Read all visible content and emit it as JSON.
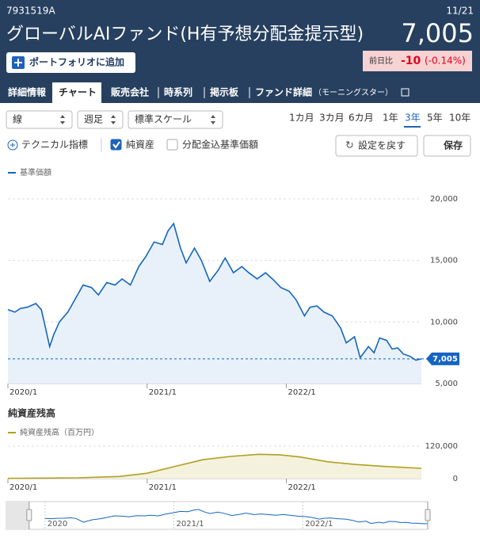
{
  "header": {
    "code": "7931519A",
    "date": "11/21",
    "title": "グローバルAIファンド(H有予想分配金提示型)",
    "price": "7,005",
    "portfolio_button": "ポートフォリオに追加",
    "change_label": "前日比",
    "change": "-10",
    "change_pct": "(-0.14%)"
  },
  "tabs": [
    "詳細情報",
    "チャート",
    "販売会社",
    "時系列",
    "掲示板",
    "ファンド詳細"
  ],
  "tab_note": "（モーニングスター）",
  "active_tab": 1,
  "controls": {
    "selects": [
      "線",
      "週足",
      "標準スケール"
    ],
    "periods": [
      "1カ月",
      "3カ月",
      "6カ月",
      "1年",
      "3年",
      "5年",
      "10年"
    ],
    "active_period": 4,
    "technical": "テクニカル指標",
    "checkboxes": [
      {
        "label": "純資産",
        "checked": true
      },
      {
        "label": "分配金込基準価額",
        "checked": false
      }
    ],
    "reset": "設定を戻す",
    "save": "保存"
  },
  "chart_data": [
    {
      "type": "line",
      "x": [
        2020.0,
        2020.05,
        2020.09,
        2020.14,
        2020.2,
        2020.24,
        2020.27,
        2020.3,
        2020.33,
        2020.37,
        2020.43,
        2020.48,
        2020.54,
        2020.6,
        2020.65,
        2020.71,
        2020.77,
        2020.82,
        2020.88,
        2020.94,
        2020.99,
        2021.05,
        2021.11,
        2021.15,
        2021.19,
        2021.24,
        2021.28,
        2021.34,
        2021.39,
        2021.45,
        2021.51,
        2021.56,
        2021.62,
        2021.68,
        2021.73,
        2021.79,
        2021.85,
        2021.9,
        2021.96,
        2022.02,
        2022.07,
        2022.13,
        2022.17,
        2022.22,
        2022.27,
        2022.33,
        2022.39,
        2022.43,
        2022.49,
        2022.53,
        2022.59,
        2022.63,
        2022.67,
        2022.72,
        2022.76,
        2022.8,
        2022.84,
        2022.89,
        2022.93,
        2022.97
      ],
      "series": [
        {
          "name": "基準価額",
          "color": "#1565c0",
          "fill": "#e8f1fa",
          "values": [
            11000,
            10800,
            11100,
            11200,
            11500,
            11000,
            9500,
            8000,
            9000,
            10000,
            10800,
            11800,
            13000,
            12800,
            12200,
            13200,
            13000,
            13500,
            13000,
            14500,
            15300,
            16500,
            16300,
            17400,
            18000,
            16000,
            14800,
            16000,
            15000,
            13300,
            14200,
            15200,
            14000,
            14500,
            14000,
            13500,
            14000,
            13500,
            12800,
            12500,
            11800,
            10500,
            11200,
            11300,
            10800,
            10500,
            9500,
            8300,
            8800,
            7100,
            8000,
            7500,
            8700,
            8500,
            7800,
            7900,
            7400,
            7200,
            6900,
            7005
          ]
        }
      ],
      "last_value_label": "7,005",
      "xlim": [
        2020,
        2022.97
      ],
      "xticks": [
        {
          "value": 2020,
          "label": "2020/1"
        },
        {
          "value": 2021,
          "label": "2021/1"
        },
        {
          "value": 2022,
          "label": "2022/1"
        }
      ],
      "ylim": [
        5000,
        20000
      ],
      "yticks": [
        {
          "value": 5000,
          "label": "5,000"
        },
        {
          "value": 10000,
          "label": "10,000"
        },
        {
          "value": 15000,
          "label": "15,000"
        },
        {
          "value": 20000,
          "label": "20,000"
        }
      ],
      "grid": true,
      "navigator": {
        "xlim": [
          2019.7,
          2022.97
        ],
        "xticks": [
          2020,
          {
            "value": 2021,
            "label": "2021/1"
          },
          {
            "value": 2022,
            "label": "2022/1"
          }
        ]
      }
    },
    {
      "type": "area",
      "title": "純資産残高",
      "x": [
        2020.0,
        2020.5,
        2020.8,
        2021.0,
        2021.2,
        2021.4,
        2021.6,
        2021.8,
        2021.95,
        2022.1,
        2022.3,
        2022.5,
        2022.7,
        2022.97
      ],
      "series": [
        {
          "name": "純資産残高（百万円）",
          "color": "#b0a020",
          "fill": "#f4f1dc",
          "values": [
            1000,
            3000,
            8000,
            20000,
            45000,
            70000,
            82000,
            90000,
            88000,
            80000,
            62000,
            52000,
            45000,
            38000
          ]
        }
      ],
      "xlim": [
        2020,
        2022.97
      ],
      "xticks": [
        {
          "value": 2020,
          "label": "2020/1"
        },
        {
          "value": 2021,
          "label": "2021/1"
        },
        {
          "value": 2022,
          "label": "2022/1"
        }
      ],
      "ylim": [
        0,
        120000
      ],
      "yticks": [
        0,
        {
          "value": 120000,
          "label": "120,000"
        }
      ],
      "grid": true
    }
  ]
}
